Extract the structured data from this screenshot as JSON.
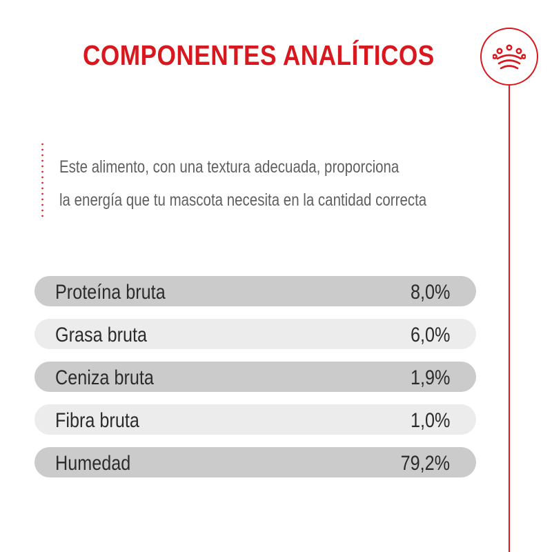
{
  "header": {
    "title": "COMPONENTES ANALÍTICOS",
    "logo_icon": "crown-icon"
  },
  "description": {
    "line1": "Este alimento, con una textura adecuada, proporciona",
    "line2": "la energía que tu mascota necesita en la cantidad correcta"
  },
  "components": [
    {
      "label": "Proteína bruta",
      "value": "8,0%"
    },
    {
      "label": "Grasa bruta",
      "value": "6,0%"
    },
    {
      "label": "Ceniza bruta",
      "value": "1,9%"
    },
    {
      "label": "Fibra bruta",
      "value": "1,0%"
    },
    {
      "label": "Humedad",
      "value": "79,2%"
    }
  ],
  "colors": {
    "accent": "#d7191f",
    "row_dark": "#cbcbcb",
    "row_light": "#ececec",
    "text": "#2b2b2b",
    "description_text": "#5f5f5f"
  }
}
